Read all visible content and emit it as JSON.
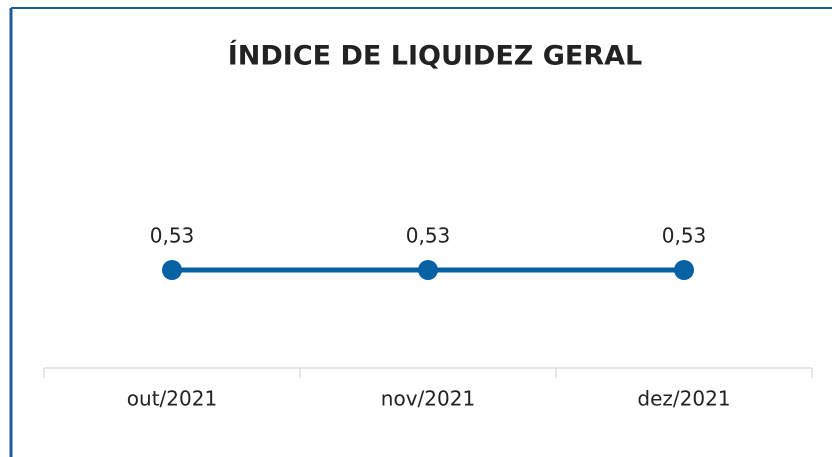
{
  "chart_data": {
    "type": "line",
    "title": "ÍNDICE DE LIQUIDEZ GERAL",
    "categories": [
      "out/2021",
      "nov/2021",
      "dez/2021"
    ],
    "series": [
      {
        "color": "#0762a3",
        "values": [
          0.53,
          0.53,
          0.53
        ],
        "value_labels": [
          "0,53",
          "0,53",
          "0,53"
        ]
      }
    ]
  }
}
